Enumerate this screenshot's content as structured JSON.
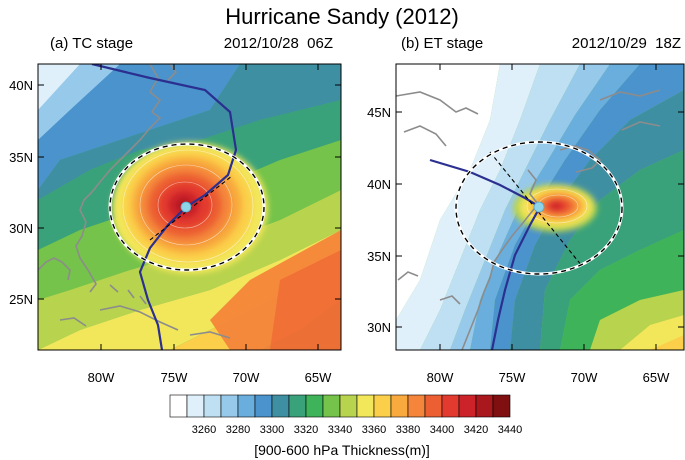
{
  "figure": {
    "title": "Hurricane Sandy (2012)"
  },
  "panels": [
    {
      "label": "(a) TC stage",
      "datetime": "2012/10/28  06Z",
      "lat_ticks": [
        "40N",
        "35N",
        "30N",
        "25N"
      ],
      "lon_ticks": [
        "80W",
        "75W",
        "70W",
        "65W"
      ],
      "lat_range": [
        21.5,
        41.5
      ],
      "lon_range": [
        -84,
        -63.5
      ],
      "storm_center": {
        "lat": 31.4,
        "lon": -73.9
      }
    },
    {
      "label": "(b) ET stage",
      "datetime": "2012/10/29  18Z",
      "lat_ticks": [
        "45N",
        "40N",
        "35N",
        "30N"
      ],
      "lon_ticks": [
        "80W",
        "75W",
        "70W",
        "65W"
      ],
      "lat_range": [
        27.5,
        48
      ],
      "lon_range": [
        -84,
        -63.5
      ],
      "storm_center": {
        "lat": 38.5,
        "lon": -73.1
      }
    }
  ],
  "colorbar": {
    "tick_labels": [
      "3260",
      "3280",
      "3300",
      "3320",
      "3340",
      "3360",
      "3380",
      "3400",
      "3420",
      "3440"
    ],
    "label": "[900-600 hPa Thickness(m)]",
    "colors": [
      "#ffffff",
      "#dff0fa",
      "#bfe0f2",
      "#97c9ea",
      "#6aaedd",
      "#4a93cc",
      "#3f8fa3",
      "#3aa27a",
      "#3fb35a",
      "#75c34a",
      "#b8d34d",
      "#f2e65a",
      "#fbcf4a",
      "#f8aa3e",
      "#f4853a",
      "#ec5f33",
      "#e33a2f",
      "#cc2229",
      "#a8181d",
      "#800f12"
    ]
  },
  "colors": {
    "track": "#2b2f8f",
    "coast": "#8c8c8c",
    "center_marker": "#8ed3e8"
  }
}
